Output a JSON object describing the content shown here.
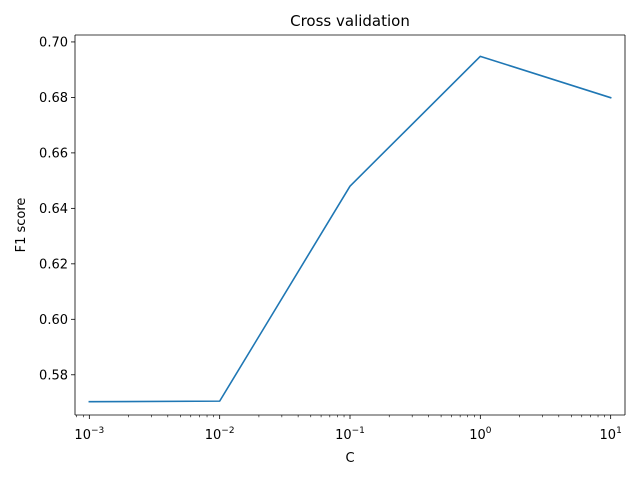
{
  "chart_data": {
    "type": "line",
    "title": "Cross validation",
    "xlabel": "C",
    "ylabel": "F1 score",
    "xscale": "log",
    "grid": false,
    "x": [
      0.001,
      0.01,
      0.1,
      1,
      10
    ],
    "xticks": [
      {
        "value": 0.001,
        "base": "10",
        "exp": "−3"
      },
      {
        "value": 0.01,
        "base": "10",
        "exp": "−2"
      },
      {
        "value": 0.1,
        "base": "10",
        "exp": "−1"
      },
      {
        "value": 1,
        "base": "10",
        "exp": "0"
      },
      {
        "value": 10,
        "base": "10",
        "exp": "1"
      }
    ],
    "yticks": [
      "0.58",
      "0.60",
      "0.62",
      "0.64",
      "0.66",
      "0.68",
      "0.70"
    ],
    "ylim": [
      0.5655,
      0.7025
    ],
    "xlim_exp": [
      -3.11,
      1.11
    ],
    "series": [
      {
        "values": [
          0.5703,
          0.5705,
          0.648,
          0.6948,
          0.6799
        ],
        "color": "#1f77b4"
      }
    ]
  }
}
